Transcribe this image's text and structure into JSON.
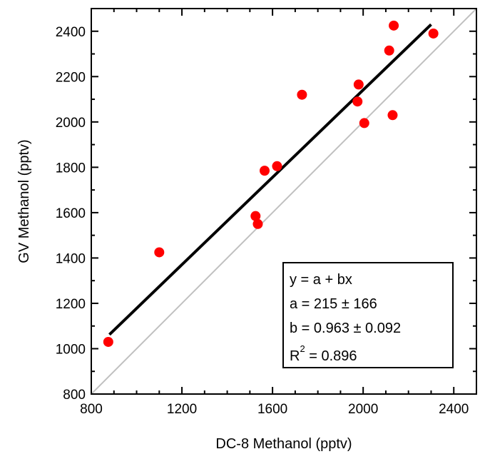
{
  "chart_data": {
    "type": "scatter",
    "title": "",
    "xlabel": "DC-8 Methanol (pptv)",
    "ylabel": "GV Methanol (pptv)",
    "xlim": [
      800,
      2500
    ],
    "ylim": [
      800,
      2500
    ],
    "xticks": [
      800,
      1200,
      1600,
      2000,
      2400
    ],
    "yticks": [
      800,
      1000,
      1200,
      1400,
      1600,
      1800,
      2000,
      2200,
      2400
    ],
    "tick_labels_x": [
      "800",
      "1200",
      "1600",
      "2000",
      "2400"
    ],
    "tick_labels_y": [
      "800",
      "1000",
      "1200",
      "1400",
      "1600",
      "1800",
      "2000",
      "2200",
      "2400"
    ],
    "grid": false,
    "point_color": "#ff0000",
    "points": [
      {
        "x": 875,
        "y": 1030
      },
      {
        "x": 1100,
        "y": 1425
      },
      {
        "x": 1525,
        "y": 1585
      },
      {
        "x": 1535,
        "y": 1550
      },
      {
        "x": 1565,
        "y": 1785
      },
      {
        "x": 1620,
        "y": 1805
      },
      {
        "x": 1730,
        "y": 2120
      },
      {
        "x": 1975,
        "y": 2090
      },
      {
        "x": 1980,
        "y": 2165
      },
      {
        "x": 2005,
        "y": 1995
      },
      {
        "x": 2115,
        "y": 2315
      },
      {
        "x": 2130,
        "y": 2030
      },
      {
        "x": 2135,
        "y": 2425
      },
      {
        "x": 2310,
        "y": 2390
      }
    ],
    "fit_line": {
      "x_start": 880,
      "x_end": 2300,
      "intercept": 215,
      "slope": 0.963,
      "color": "#000000"
    },
    "reference_line": {
      "label": "1:1",
      "color": "#c0c0c0"
    },
    "legend": {
      "placement": "bottom-right",
      "lines": {
        "equation": "y = a + bx",
        "a": "a = 215 ± 166",
        "b": "b = 0.963 ± 0.092",
        "r_prefix": "R",
        "r_sup": "2",
        "r_value": " = 0.896"
      }
    }
  }
}
